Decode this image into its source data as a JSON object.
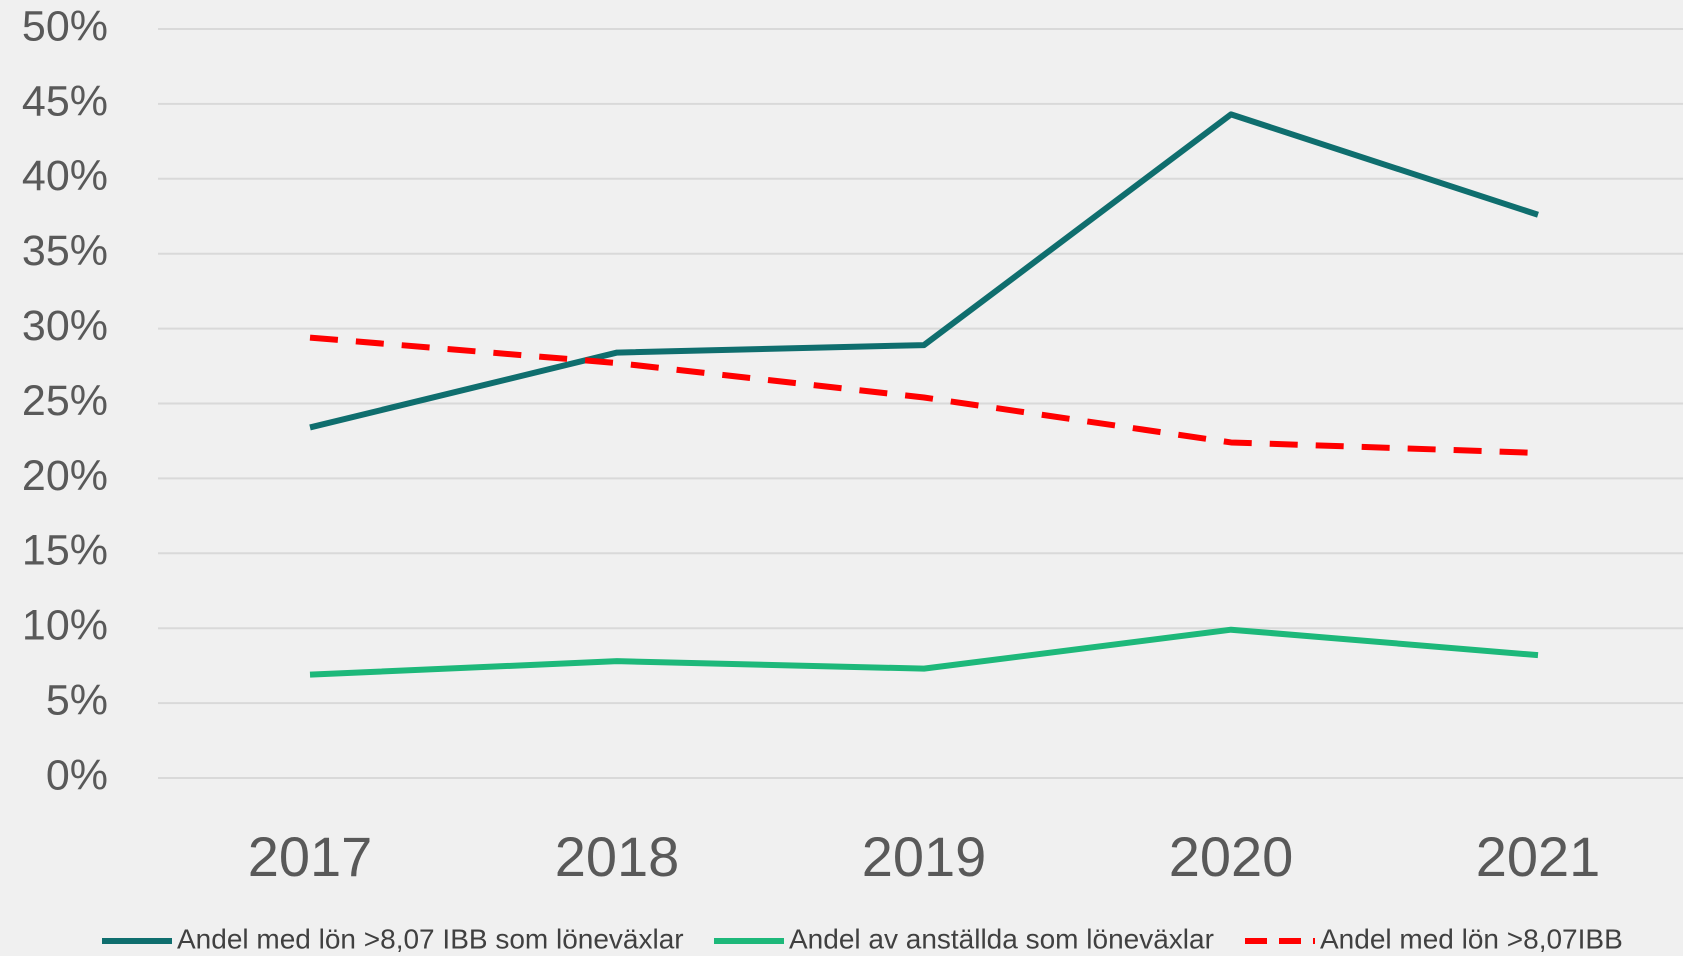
{
  "chart_data": {
    "type": "line",
    "categories": [
      "2017",
      "2018",
      "2019",
      "2020",
      "2021"
    ],
    "series": [
      {
        "name": "Andel med lön >8,07 IBB som löneväxlar",
        "color": "#0f6e6e",
        "dashed": false,
        "values": [
          23.4,
          28.4,
          28.9,
          44.3,
          37.6
        ]
      },
      {
        "name": "Andel av anställda som löneväxlar",
        "color": "#1db87a",
        "dashed": false,
        "values": [
          6.9,
          7.8,
          7.3,
          9.9,
          8.2
        ]
      },
      {
        "name": "Andel med lön >8,07IBB",
        "color": "#ff0000",
        "dashed": true,
        "values": [
          29.4,
          27.7,
          25.4,
          22.4,
          21.7
        ]
      }
    ],
    "ylim": [
      0,
      50
    ],
    "yticks": [
      {
        "value": 0,
        "label": "0%"
      },
      {
        "value": 5,
        "label": "5%"
      },
      {
        "value": 10,
        "label": "10%"
      },
      {
        "value": 15,
        "label": "15%"
      },
      {
        "value": 20,
        "label": "20%"
      },
      {
        "value": 25,
        "label": "25%"
      },
      {
        "value": 30,
        "label": "30%"
      },
      {
        "value": 35,
        "label": "35%"
      },
      {
        "value": 40,
        "label": "40%"
      },
      {
        "value": 45,
        "label": "45%"
      },
      {
        "value": 50,
        "label": "50%"
      }
    ],
    "grid": true,
    "legend": "bottom"
  }
}
